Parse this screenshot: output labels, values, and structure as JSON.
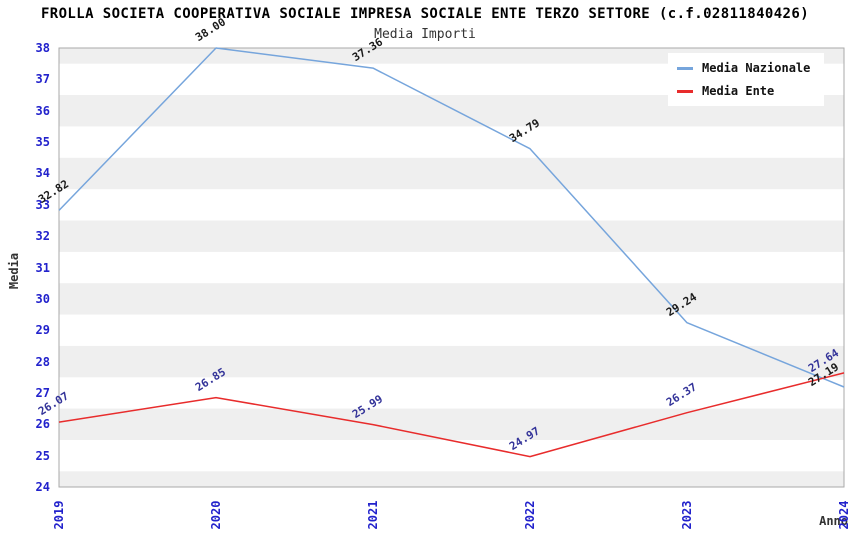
{
  "chart_data": {
    "type": "line",
    "title": "FROLLA SOCIETA COOPERATIVA SOCIALE IMPRESA SOCIALE ENTE TERZO SETTORE (c.f.02811840426)",
    "subtitle": "Media Importi",
    "xlabel": "Anno",
    "ylabel": "Media",
    "categories": [
      "2019",
      "2020",
      "2021",
      "2022",
      "2023",
      "2024"
    ],
    "series": [
      {
        "name": "Media Nazionale",
        "values": [
          32.82,
          38.0,
          37.36,
          34.79,
          29.24,
          27.19
        ],
        "color": "#76A5DC",
        "label_color": "#1A1A1A"
      },
      {
        "name": "Media Ente",
        "values": [
          26.07,
          26.85,
          25.99,
          24.97,
          26.37,
          27.64
        ],
        "color": "#E82C2C",
        "label_color": "#333399"
      }
    ],
    "ylim": [
      24,
      38
    ],
    "ytick_step": 1,
    "grid": "alternating-horizontal-bands",
    "legend_position": "top-right",
    "axis_tick_color": "#2222CC",
    "band_gray": "#EFEFEF",
    "plot_border_color": "#AAAAAA"
  }
}
